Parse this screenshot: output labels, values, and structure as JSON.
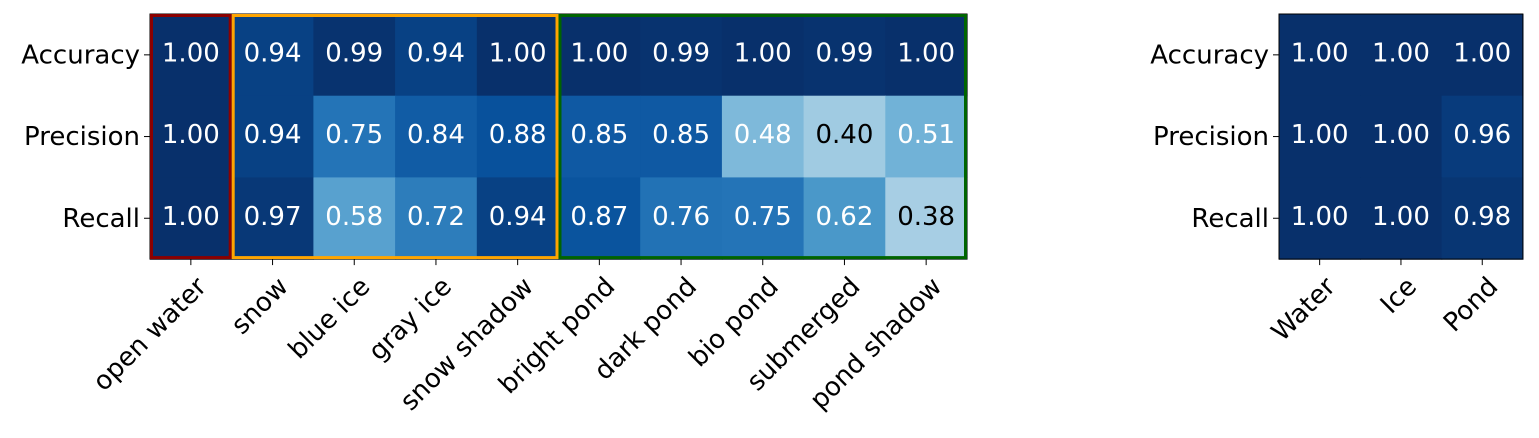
{
  "chart_data": [
    {
      "type": "heatmap",
      "rows": [
        "Accuracy",
        "Precision",
        "Recall"
      ],
      "columns": [
        "open water",
        "snow",
        "blue ice",
        "gray ice",
        "snow shadow",
        "bright pond",
        "dark pond",
        "bio pond",
        "submerged",
        "pond shadow"
      ],
      "values": [
        [
          "1.00",
          "0.94",
          "0.99",
          "0.94",
          "1.00",
          "1.00",
          "0.99",
          "1.00",
          "0.99",
          "1.00"
        ],
        [
          "1.00",
          "0.94",
          "0.75",
          "0.84",
          "0.88",
          "0.85",
          "0.85",
          "0.48",
          "0.40",
          "0.51"
        ],
        [
          "1.00",
          "0.97",
          "0.58",
          "0.72",
          "0.94",
          "0.87",
          "0.76",
          "0.75",
          "0.62",
          "0.38"
        ]
      ],
      "value_range": [
        0,
        1
      ],
      "colormap": "Blues",
      "column_groups": [
        {
          "columns": [
            "open water"
          ],
          "outline_color": "#8b0000"
        },
        {
          "columns": [
            "snow",
            "blue ice",
            "gray ice",
            "snow shadow"
          ],
          "outline_color": "#ffa500"
        },
        {
          "columns": [
            "bright pond",
            "dark pond",
            "bio pond",
            "submerged",
            "pond shadow"
          ],
          "outline_color": "#006400"
        }
      ]
    },
    {
      "type": "heatmap",
      "rows": [
        "Accuracy",
        "Precision",
        "Recall"
      ],
      "columns": [
        "Water",
        "Ice",
        "Pond"
      ],
      "values": [
        [
          "1.00",
          "1.00",
          "1.00"
        ],
        [
          "1.00",
          "1.00",
          "0.96"
        ],
        [
          "1.00",
          "1.00",
          "0.98"
        ]
      ],
      "value_range": [
        0,
        1
      ],
      "colormap": "Blues"
    }
  ]
}
